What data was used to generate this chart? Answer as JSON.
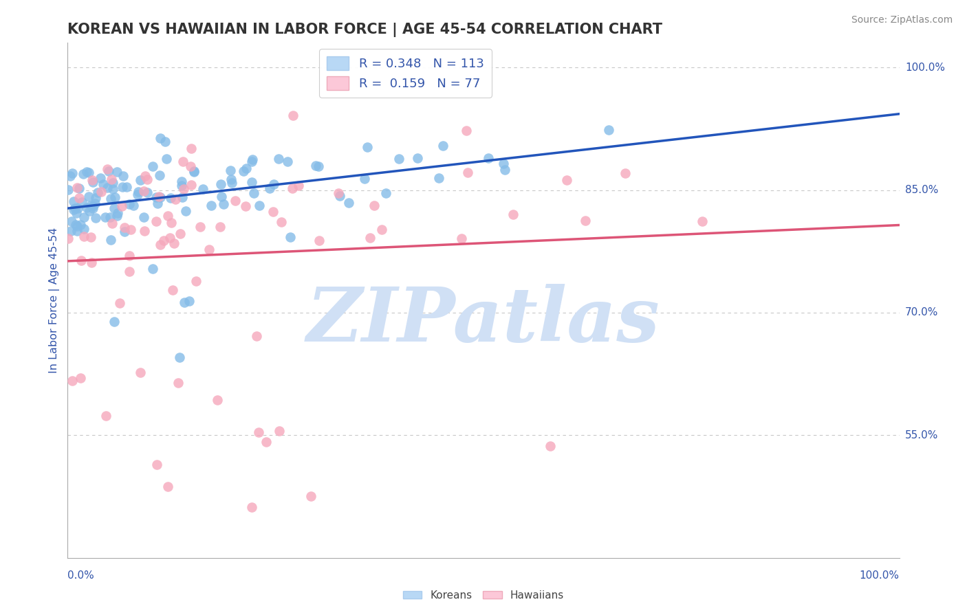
{
  "title": "KOREAN VS HAWAIIAN IN LABOR FORCE | AGE 45-54 CORRELATION CHART",
  "source": "Source: ZipAtlas.com",
  "ylabel": "In Labor Force | Age 45-54",
  "xmin": 0.0,
  "xmax": 1.0,
  "ymin": 0.4,
  "ymax": 1.03,
  "korean_R": 0.348,
  "korean_N": 113,
  "hawaiian_R": 0.159,
  "hawaiian_N": 77,
  "korean_color": "#85bce8",
  "hawaiian_color": "#f5a8bc",
  "korean_line_color": "#2255bb",
  "hawaiian_line_color": "#dd5577",
  "legend_korean_color": "#b8d8f5",
  "legend_hawaiian_color": "#fcc8d8",
  "watermark_color": "#d0e0f5",
  "grid_color": "#c8c8c8",
  "title_color": "#333333",
  "axis_color": "#3355aa",
  "ytick_positions": [
    0.55,
    0.7,
    0.85,
    1.0
  ],
  "ytick_labels": [
    "55.0%",
    "70.0%",
    "85.0%",
    "100.0%"
  ]
}
